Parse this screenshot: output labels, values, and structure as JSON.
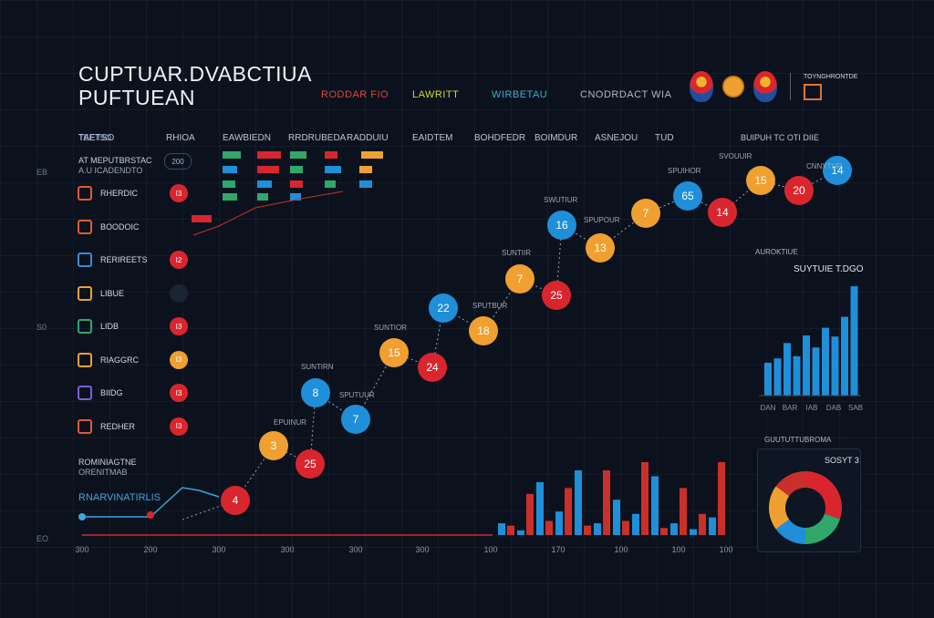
{
  "title_lines": [
    "CUPTUAR.DVABCTIUA",
    "PUFTUEAN"
  ],
  "header_labels": [
    {
      "text": "RODDAR FIO",
      "color": "#e0453b"
    },
    {
      "text": "LAWRITT",
      "color": "#c8d93a"
    },
    {
      "text": "WIRBETAU",
      "color": "#2fb3d4"
    },
    {
      "text": "CNODRDACT WIA",
      "color": "#aeb8c4"
    }
  ],
  "corner_label": "TOYNGHRONTDE",
  "left_top_label": "TEETSO",
  "left_axis": [
    "EB",
    "S0",
    "EO"
  ],
  "sidebar_caption": [
    "AT MEPUTBRSTAC",
    "A.U ICADENDTO"
  ],
  "bottom_left_caption": [
    "ROMINIAGTNE",
    "ORENITMAB"
  ],
  "bottom_left_series_label": "RNARVINATIRLIS",
  "column_headers": [
    "TAETSO",
    "RHIOA",
    "EAWBIEDN",
    "RRDRUBEDA",
    "RADDUIU",
    "EAIDTEM",
    "BOHDFEDR",
    "BOIMDUR",
    "ASNEJOU",
    "TUD"
  ],
  "top_right_header": "BUIPUH TC OTI DIIE",
  "sidebar_rows": [
    {
      "label": "RHERDIC",
      "badge": "I3",
      "icon_color": "#e05a36",
      "badge_color": "#d9262e"
    },
    {
      "label": "BOODOIC",
      "badge": "",
      "icon_color": "#e05a36",
      "badge_color": ""
    },
    {
      "label": "RERIREETS",
      "badge": "I2",
      "icon_color": "#3a8bd9",
      "badge_color": "#d9262e"
    },
    {
      "label": "LIBUE",
      "badge": "",
      "icon_color": "#f0a030",
      "badge_color": "#1a2533"
    },
    {
      "label": "LIDB",
      "badge": "I3",
      "icon_color": "#2fa86a",
      "badge_color": "#d9262e"
    },
    {
      "label": "RIAGGRC",
      "badge": "I3",
      "icon_color": "#f0a030",
      "badge_color": "#f0a030"
    },
    {
      "label": "BIIDG",
      "badge": "I3",
      "icon_color": "#7a5fd9",
      "badge_color": "#d9262e"
    },
    {
      "label": "REDHER",
      "badge": "I3",
      "icon_color": "#e05a36",
      "badge_color": "#d9262e"
    }
  ],
  "chart_data": [
    {
      "type": "scatter",
      "title": "",
      "x_ticks": [
        "300",
        "200",
        "300",
        "300",
        "300",
        "300",
        "100",
        "170",
        "100",
        "100",
        "100"
      ],
      "points": [
        {
          "x": 1,
          "y": 4,
          "label": "4",
          "color": "#d9262e"
        },
        {
          "x": 2,
          "y": 3,
          "label": "3",
          "color": "#f0a030"
        },
        {
          "x": 3,
          "y": 8,
          "label": "8",
          "color": "#1f8fd9"
        },
        {
          "x": 4,
          "y": 25,
          "label": "25",
          "color": "#d9262e"
        },
        {
          "x": 5,
          "y": 7,
          "label": "7",
          "color": "#1f8fd9"
        },
        {
          "x": 6,
          "y": 15,
          "label": "15",
          "color": "#f0a030"
        },
        {
          "x": 7,
          "y": 24,
          "label": "24",
          "color": "#d9262e"
        },
        {
          "x": 8,
          "y": 22,
          "label": "22",
          "color": "#1f8fd9"
        },
        {
          "x": 9,
          "y": 18,
          "label": "18",
          "color": "#f0a030"
        },
        {
          "x": 10,
          "y": 7,
          "label": "7",
          "color": "#f0a030"
        },
        {
          "x": 11,
          "y": 25,
          "label": "25",
          "color": "#d9262e"
        },
        {
          "x": 12,
          "y": 16,
          "label": "16",
          "color": "#1f8fd9"
        },
        {
          "x": 13,
          "y": 13,
          "label": "13",
          "color": "#f0a030"
        },
        {
          "x": 14,
          "y": 7,
          "label": "7",
          "color": "#f0a030"
        },
        {
          "x": 15,
          "y": 65,
          "label": "65",
          "color": "#1f8fd9"
        },
        {
          "x": 16,
          "y": 14,
          "label": "14",
          "color": "#d9262e"
        },
        {
          "x": 17,
          "y": 15,
          "label": "15",
          "color": "#f0a030"
        },
        {
          "x": 18,
          "y": 20,
          "label": "20",
          "color": "#d9262e"
        },
        {
          "x": 19,
          "y": 14,
          "label": "14",
          "color": "#1f8fd9"
        }
      ],
      "annotations": [
        "EPUINUR",
        "SUNTIRN",
        "SPUTUUR",
        "SUNTIOR",
        "SPUTBUR",
        "SUNTIIR",
        "SWUTIUR",
        "SPUPOUR",
        "SPUIHOR",
        "SVOUUIR",
        "CNNYTUR"
      ]
    },
    {
      "type": "bar",
      "title": "",
      "series": [
        {
          "name": "",
          "color": "#1f8fd9",
          "values": [
            10,
            4,
            45,
            20,
            55,
            10,
            30,
            18,
            50,
            10,
            5,
            15
          ]
        },
        {
          "name": "",
          "color": "#c9302c",
          "values": [
            8,
            35,
            12,
            40,
            8,
            55,
            12,
            62,
            6,
            40,
            18,
            62
          ]
        }
      ]
    },
    {
      "type": "bar",
      "title": "SUYTUIE T.DGO",
      "header": "AUROKTIUE",
      "values": [
        30,
        34,
        48,
        36,
        55,
        44,
        62,
        54,
        72,
        100
      ],
      "x_ticks": [
        "DAN",
        "BAR",
        "IAB",
        "DAB",
        "SAB"
      ],
      "color": "#1f8fd9"
    },
    {
      "type": "pie",
      "title": "SOSYT 3",
      "header": "GUUTUTTUBROMA",
      "slices": [
        {
          "value": 30,
          "color": "#d9262e"
        },
        {
          "value": 20,
          "color": "#2fa86a"
        },
        {
          "value": 15,
          "color": "#1f8fd9"
        },
        {
          "value": 20,
          "color": "#f0a030"
        },
        {
          "value": 15,
          "color": "#c9302c"
        }
      ]
    }
  ]
}
